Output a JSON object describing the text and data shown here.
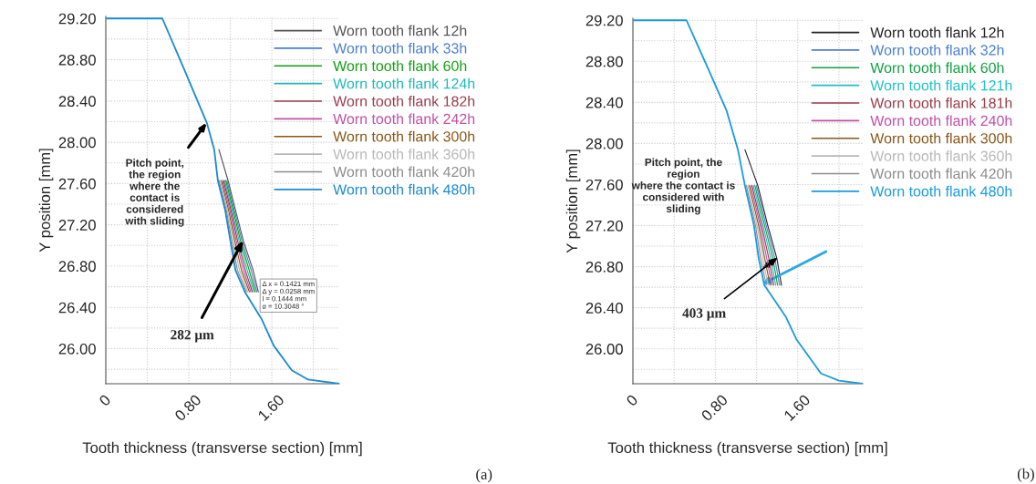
{
  "chart_data": [
    {
      "type": "line",
      "xlabel": "Tooth thickness (transverse section) [mm]",
      "ylabel": "Y position [mm]",
      "xlim": [
        0,
        2.25
      ],
      "ylim": [
        25.66,
        29.22
      ],
      "xticks": [
        0,
        {
          "value": 0.4,
          "label": null
        },
        {
          "value": 0.8,
          "label": "0.80"
        },
        {
          "value": 1.2,
          "label": null
        },
        {
          "value": 1.6,
          "label": "1.60"
        },
        {
          "value": 2.0,
          "label": null
        }
      ],
      "yticks": [
        {
          "value": 25.8,
          "label": null
        },
        {
          "value": 26.0,
          "label": "26.00"
        },
        {
          "value": 26.2,
          "label": null
        },
        {
          "value": 26.4,
          "label": "26.40"
        },
        {
          "value": 26.6,
          "label": null
        },
        {
          "value": 26.8,
          "label": "26.80"
        },
        {
          "value": 27.0,
          "label": null
        },
        {
          "value": 27.2,
          "label": "27.20"
        },
        {
          "value": 27.4,
          "label": null
        },
        {
          "value": 27.6,
          "label": "27.60"
        },
        {
          "value": 27.8,
          "label": null
        },
        {
          "value": 28.0,
          "label": "28.00"
        },
        {
          "value": 28.2,
          "label": null
        },
        {
          "value": 28.4,
          "label": "28.40"
        },
        {
          "value": 28.6,
          "label": null
        },
        {
          "value": 28.8,
          "label": "28.80"
        },
        {
          "value": 29.0,
          "label": null
        },
        {
          "value": 29.2,
          "label": "29.20"
        }
      ],
      "grid": true,
      "legend": "top right",
      "line_style": "solid",
      "series": [
        {
          "name": "Worn tooth flank 12h",
          "color": "#555555",
          "x": [
            1.09,
            1.178,
            1.251,
            1.325,
            1.42,
            1.47
          ],
          "values": [
            27.93,
            27.63,
            27.34,
            27.05,
            26.76,
            26.55
          ]
        },
        {
          "name": "Worn tooth flank 33h",
          "color": "#4a7fd0",
          "x": [
            1.167,
            1.24,
            1.311,
            1.401,
            1.456
          ],
          "values": [
            27.63,
            27.34,
            27.05,
            26.76,
            26.55
          ]
        },
        {
          "name": "Worn tooth flank 60h",
          "color": "#10a010",
          "x": [
            1.156,
            1.229,
            1.297,
            1.382,
            1.441
          ],
          "values": [
            27.63,
            27.34,
            27.05,
            26.76,
            26.55
          ]
        },
        {
          "name": "Worn tooth flank 124h",
          "color": "#20b8b8",
          "x": [
            1.145,
            1.218,
            1.283,
            1.363,
            1.427
          ],
          "values": [
            27.63,
            27.34,
            27.05,
            26.76,
            26.55
          ]
        },
        {
          "name": "Worn tooth flank 182h",
          "color": "#9a3a4a",
          "x": [
            1.134,
            1.207,
            1.269,
            1.344,
            1.412
          ],
          "values": [
            27.63,
            27.34,
            27.05,
            26.76,
            26.55
          ]
        },
        {
          "name": "Worn tooth flank 242h",
          "color": "#c050a8",
          "x": [
            1.124,
            1.196,
            1.256,
            1.326,
            1.398
          ],
          "values": [
            27.63,
            27.34,
            27.05,
            26.76,
            26.55
          ]
        },
        {
          "name": "Worn tooth flank 300h",
          "color": "#8a5518",
          "x": [
            1.113,
            1.184,
            1.242,
            1.307,
            1.384
          ],
          "values": [
            27.63,
            27.34,
            27.05,
            26.76,
            26.55
          ]
        },
        {
          "name": "Worn tooth flank 360h",
          "color": "#b8b8b8",
          "x": [
            1.102,
            1.173,
            1.228,
            1.288,
            1.369
          ],
          "values": [
            27.63,
            27.34,
            27.05,
            26.76,
            26.55
          ]
        },
        {
          "name": "Worn tooth flank 420h",
          "color": "#8c8c8c",
          "x": [
            1.091,
            1.162,
            1.214,
            1.269,
            1.355
          ],
          "values": [
            27.63,
            27.34,
            27.05,
            26.76,
            26.55
          ]
        },
        {
          "name": "Worn tooth flank 480h",
          "color": "#1a8ad0",
          "x": [
            0,
            0.545,
            0.75,
            0.973,
            1.045,
            1.08,
            1.151,
            1.2,
            1.25,
            1.34,
            1.5,
            1.618,
            1.793,
            1.95,
            2.25
          ],
          "values": [
            29.2,
            29.2,
            28.72,
            28.19,
            27.93,
            27.63,
            27.34,
            27.05,
            26.76,
            26.55,
            26.29,
            26.03,
            25.79,
            25.7,
            25.66
          ]
        }
      ],
      "annotations": [
        {
          "text": "Pitch point,\nthe region\nwhere the\ncontact is\nconsidered\nwith sliding",
          "x": 0.973,
          "y": 28.19
        },
        "Δ x = 0.1421 mm\nΔ y = 0.0258 mm\nl = 0.1444 mm\nα = 10.3048 °",
        {
          "text": "282 μm",
          "x": 1.325,
          "y": 27.05
        },
        "(a)"
      ]
    },
    {
      "type": "line",
      "xlabel": "Tooth thickness (transverse section) [mm]",
      "ylabel": "Y position [mm]",
      "xlim": [
        0,
        2.23
      ],
      "ylim": [
        25.66,
        29.22
      ],
      "xticks": [
        0,
        {
          "value": 0.4,
          "label": null
        },
        {
          "value": 0.8,
          "label": "0.80"
        },
        {
          "value": 1.2,
          "label": null
        },
        {
          "value": 1.6,
          "label": "1.60"
        },
        {
          "value": 2.0,
          "label": null
        }
      ],
      "yticks": [
        {
          "value": 25.8,
          "label": null
        },
        {
          "value": 26.0,
          "label": "26.00"
        },
        {
          "value": 26.2,
          "label": null
        },
        {
          "value": 26.4,
          "label": "26.40"
        },
        {
          "value": 26.6,
          "label": null
        },
        {
          "value": 26.8,
          "label": "26.80"
        },
        {
          "value": 27.0,
          "label": null
        },
        {
          "value": 27.2,
          "label": "27.20"
        },
        {
          "value": 27.4,
          "label": null
        },
        {
          "value": 27.6,
          "label": "27.60"
        },
        {
          "value": 27.8,
          "label": null
        },
        {
          "value": 28.0,
          "label": "28.00"
        },
        {
          "value": 28.2,
          "label": null
        },
        {
          "value": 28.4,
          "label": "28.40"
        },
        {
          "value": 28.6,
          "label": null
        },
        {
          "value": 28.8,
          "label": "28.80"
        },
        {
          "value": 29.0,
          "label": null
        },
        {
          "value": 29.2,
          "label": "29.20"
        }
      ],
      "grid": true,
      "legend": "top right",
      "line_style": "solid",
      "series": [
        {
          "name": "Worn tooth flank 12h",
          "color": "#222222",
          "x": [
            1.087,
            1.212,
            1.309,
            1.397,
            1.441
          ],
          "values": [
            27.94,
            27.59,
            27.2,
            26.88,
            26.62
          ]
        },
        {
          "name": "Worn tooth flank 32h",
          "color": "#4a7fd0",
          "x": [
            1.198,
            1.294,
            1.377,
            1.423
          ],
          "values": [
            27.59,
            27.2,
            26.88,
            26.62
          ]
        },
        {
          "name": "Worn tooth flank 60h",
          "color": "#10a040",
          "x": [
            1.184,
            1.279,
            1.358,
            1.404
          ],
          "values": [
            27.59,
            27.2,
            26.88,
            26.62
          ]
        },
        {
          "name": "Worn tooth flank 121h",
          "color": "#20c0c8",
          "x": [
            1.17,
            1.264,
            1.338,
            1.386
          ],
          "values": [
            27.59,
            27.2,
            26.88,
            26.62
          ]
        },
        {
          "name": "Worn tooth flank 181h",
          "color": "#9a3a4a",
          "x": [
            1.156,
            1.249,
            1.319,
            1.367
          ],
          "values": [
            27.59,
            27.2,
            26.88,
            26.62
          ]
        },
        {
          "name": "Worn tooth flank 240h",
          "color": "#c050a8",
          "x": [
            1.143,
            1.235,
            1.299,
            1.349
          ],
          "values": [
            27.59,
            27.2,
            26.88,
            26.62
          ]
        },
        {
          "name": "Worn tooth flank 300h",
          "color": "#8a5518",
          "x": [
            1.129,
            1.22,
            1.279,
            1.331
          ],
          "values": [
            27.59,
            27.2,
            26.88,
            26.62
          ]
        },
        {
          "name": "Worn tooth flank 360h",
          "color": "#b8b8b8",
          "x": [
            1.115,
            1.205,
            1.26,
            1.312
          ],
          "values": [
            27.59,
            27.2,
            26.88,
            26.62
          ]
        },
        {
          "name": "Worn tooth flank 420h",
          "color": "#8c8c8c",
          "x": [
            1.101,
            1.19,
            1.24,
            1.294
          ],
          "values": [
            27.59,
            27.2,
            26.88,
            26.62
          ]
        },
        {
          "name": "Worn tooth flank 480h",
          "color": "#1a9ae0",
          "x": [
            0,
            0.52,
            0.72,
            0.909,
            1.019,
            1.087,
            1.175,
            1.221,
            1.275,
            1.485,
            1.588,
            1.825,
            2.0,
            2.23
          ],
          "values": [
            29.2,
            29.2,
            28.75,
            28.32,
            27.94,
            27.59,
            27.2,
            26.88,
            26.62,
            26.31,
            26.09,
            25.76,
            25.69,
            25.66
          ]
        }
      ],
      "annotations": [
        "Pitch point, the\nregion\nwhere the contact is\nconsidered with\nsliding",
        {
          "text": "403 μm",
          "x": 1.405,
          "y": 26.89
        },
        "(b)"
      ]
    }
  ]
}
